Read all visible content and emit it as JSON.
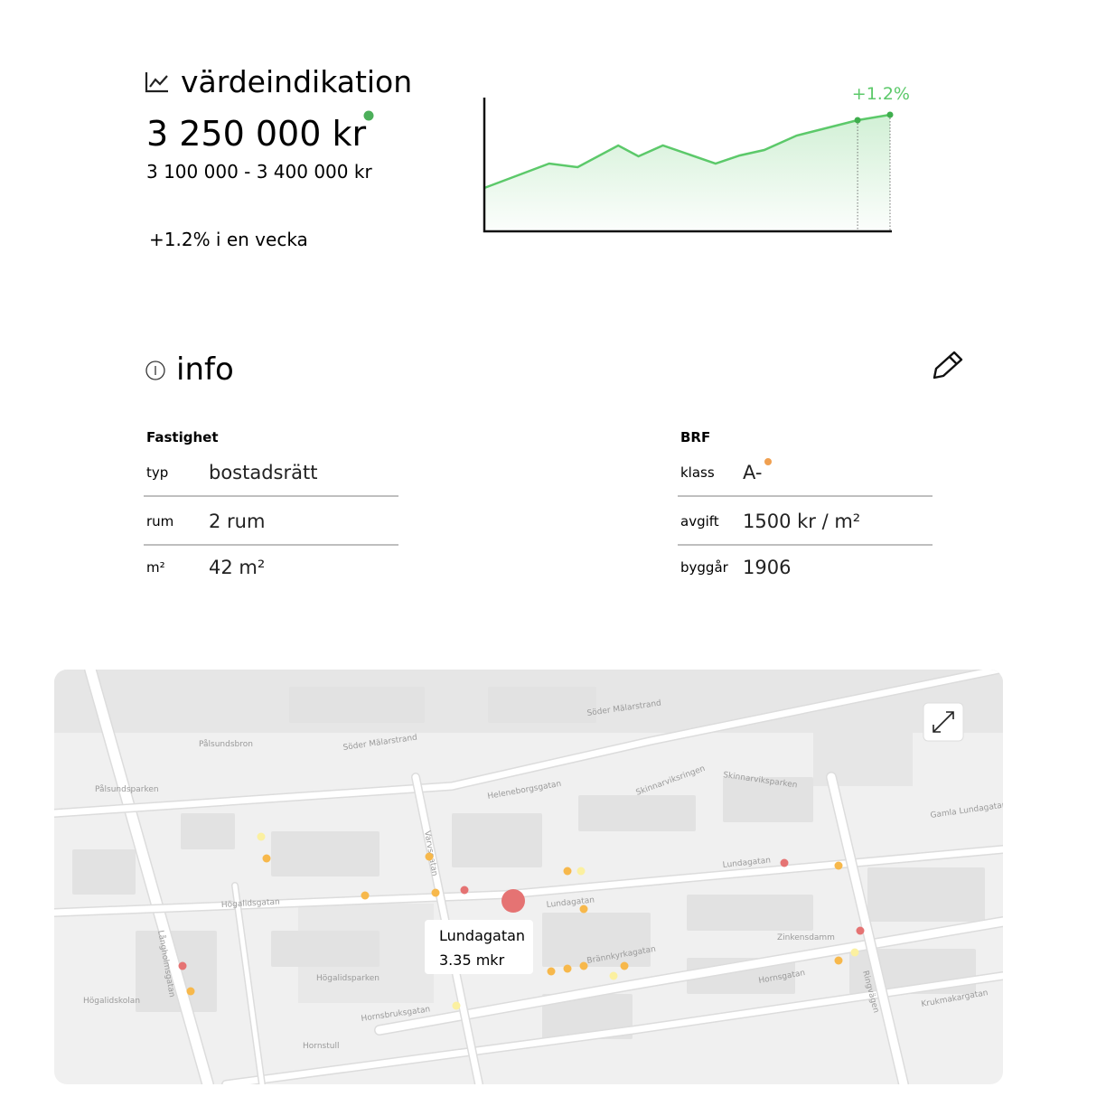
{
  "header": {
    "title": "värdeindikation",
    "price": "3 250 000 kr",
    "range": "3 100 000 - 3 400 000 kr",
    "change_text": "+1.2% i en vecka"
  },
  "chart_data": {
    "type": "line",
    "x": [
      0,
      16,
      23,
      33,
      38,
      44,
      57,
      63,
      69,
      77,
      92,
      100
    ],
    "values": [
      48,
      75,
      71,
      95,
      83,
      95,
      75,
      84,
      90,
      106,
      123,
      129
    ],
    "xlim": [
      0,
      100
    ],
    "ylim": [
      0,
      148
    ],
    "color": "#5cc96a",
    "end_label": "+1.2%"
  },
  "info": {
    "title": "info",
    "columns": [
      {
        "heading": "Fastighet",
        "rows": [
          [
            "typ",
            "bostadsrätt"
          ],
          [
            "rum",
            "2 rum"
          ],
          [
            "m²",
            "42 m²"
          ]
        ]
      },
      {
        "heading": "BRF",
        "rows": [
          [
            "klass",
            "A-"
          ],
          [
            "avgift",
            "1500 kr / m²"
          ],
          [
            "byggår",
            "1906"
          ]
        ]
      }
    ]
  },
  "map": {
    "labels": [
      "Pålsundsbron",
      "Söder Mälarstrand",
      "Söder Mälarstrand",
      "Heleneborgsgatan",
      "Skinnarviksparken",
      "Högalidsgatan",
      "Lundagatan",
      "Lundagatan",
      "Zinkensdamm",
      "Hornsgatan",
      "Brännkyrkagatan",
      "Högalidsparken",
      "Hornstull",
      "Långholmsgatan",
      "Krukmakargatan",
      "Ringvägen",
      "Pålsundsparken",
      "Varvsgatan",
      "Högalidskolan",
      "Gamla Lundagatan",
      "Hornsbruksgatan",
      "Skinnarviksringen"
    ],
    "tooltip": {
      "title": "Lundagatan",
      "value": "3.35 mkr"
    }
  }
}
